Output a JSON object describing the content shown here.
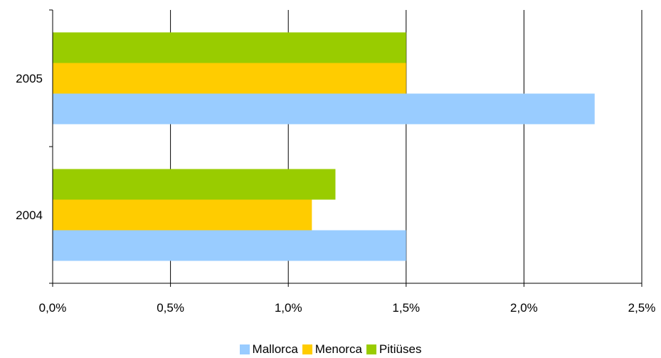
{
  "chart_data": {
    "type": "bar",
    "orientation": "horizontal",
    "categories": [
      "2005",
      "2004"
    ],
    "series": [
      {
        "name": "Mallorca",
        "color": "#99ccff",
        "values": [
          2.3,
          1.5
        ]
      },
      {
        "name": "Menorca",
        "color": "#ffcc00",
        "values": [
          1.5,
          1.1
        ]
      },
      {
        "name": "Pitiüses",
        "color": "#99cc00",
        "values": [
          1.5,
          1.2
        ]
      }
    ],
    "x_ticks": [
      "0,0%",
      "0,5%",
      "1,0%",
      "1,5%",
      "2,0%",
      "2,5%"
    ],
    "xlim": [
      0,
      2.5
    ],
    "grid": "vertical",
    "legend_position": "bottom"
  }
}
